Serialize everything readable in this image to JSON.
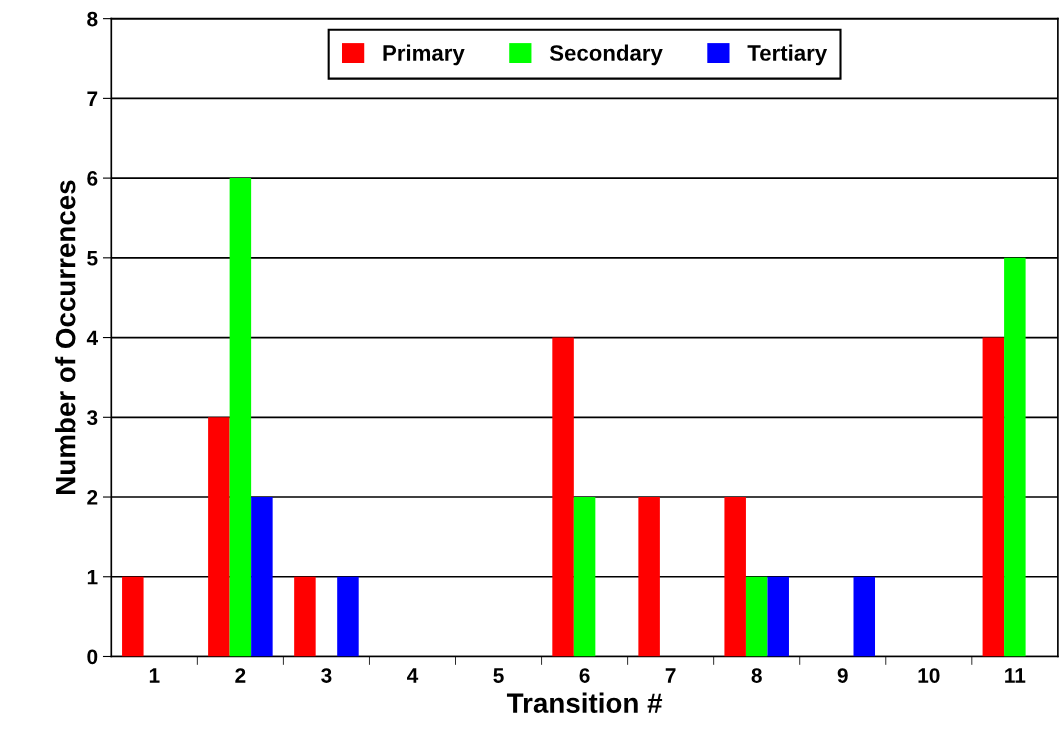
{
  "chart_data": {
    "type": "bar",
    "xlabel": "Transition #",
    "ylabel": "Number of Occurrences",
    "categories": [
      "1",
      "2",
      "3",
      "4",
      "5",
      "6",
      "7",
      "8",
      "9",
      "10",
      "11"
    ],
    "series": [
      {
        "name": "Primary",
        "color": "#ff0000",
        "values": [
          1,
          3,
          1,
          0,
          0,
          4,
          2,
          2,
          0,
          0,
          4
        ]
      },
      {
        "name": "Secondary",
        "color": "#00ff00",
        "values": [
          0,
          6,
          0,
          0,
          0,
          2,
          0,
          1,
          0,
          0,
          5
        ]
      },
      {
        "name": "Tertiary",
        "color": "#0000ff",
        "values": [
          0,
          2,
          1,
          0,
          0,
          0,
          0,
          1,
          1,
          0,
          0
        ]
      }
    ],
    "ylim": [
      0,
      8
    ],
    "yticks": [
      0,
      1,
      2,
      3,
      4,
      5,
      6,
      7,
      8
    ],
    "grid": "y",
    "legend": "top"
  }
}
